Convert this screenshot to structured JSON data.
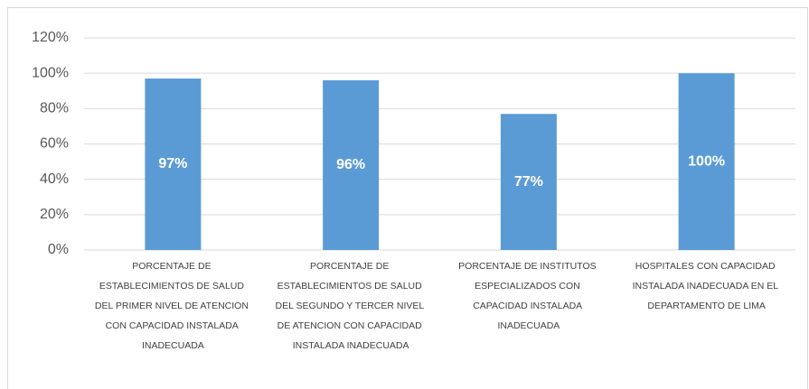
{
  "chart_data": {
    "type": "bar",
    "categories": [
      "PORCENTAJE DE ESTABLECIMIENTOS DE SALUD DEL PRIMER NIVEL DE ATENCION CON CAPACIDAD INSTALADA INADECUADA",
      "PORCENTAJE DE ESTABLECIMIENTOS DE SALUD DEL SEGUNDO Y TERCER NIVEL DE ATENCION CON CAPACIDAD INSTALADA INADECUADA",
      "PORCENTAJE DE INSTITUTOS ESPECIALIZADOS CON CAPACIDAD INSTALADA INADECUADA",
      "HOSPITALES CON CAPACIDAD INSTALADA INADECUADA EN EL DEPARTAMENTO DE LIMA"
    ],
    "values": [
      97,
      96,
      77,
      100
    ],
    "value_labels": [
      "97%",
      "96%",
      "77%",
      "100%"
    ],
    "color": "#5b9bd5",
    "ylim": [
      0,
      120
    ],
    "yticks": [
      {
        "value": 0,
        "label": "0%"
      },
      {
        "value": 20,
        "label": "20%"
      },
      {
        "value": 40,
        "label": "40%"
      },
      {
        "value": 60,
        "label": "60%"
      },
      {
        "value": 80,
        "label": "80%"
      },
      {
        "value": 100,
        "label": "100%"
      },
      {
        "value": 120,
        "label": "120%"
      }
    ],
    "grid": true
  }
}
